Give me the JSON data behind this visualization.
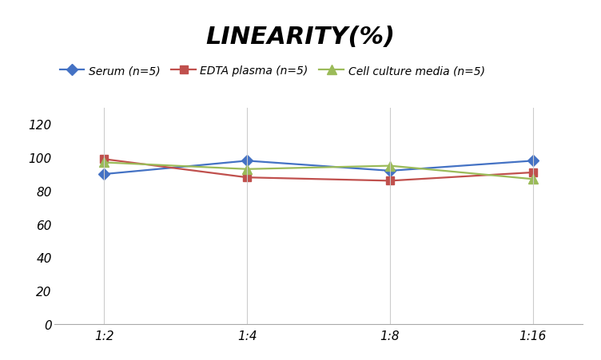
{
  "title": "LINEARITY(%)",
  "x_labels": [
    "1:2",
    "1:4",
    "1:8",
    "1:16"
  ],
  "x_positions": [
    0,
    1,
    2,
    3
  ],
  "series": [
    {
      "label": "Serum (n=5)",
      "values": [
        90,
        98,
        92,
        98
      ],
      "color": "#4472C4",
      "marker": "D",
      "markersize": 7,
      "linewidth": 1.6
    },
    {
      "label": "EDTA plasma (n=5)",
      "values": [
        99,
        88,
        86,
        91
      ],
      "color": "#C0504D",
      "marker": "s",
      "markersize": 7,
      "linewidth": 1.6
    },
    {
      "label": "Cell culture media (n=5)",
      "values": [
        97,
        93,
        95,
        87
      ],
      "color": "#9BBB59",
      "marker": "^",
      "markersize": 8,
      "linewidth": 1.6
    }
  ],
  "ylim": [
    0,
    130
  ],
  "yticks": [
    0,
    20,
    40,
    60,
    80,
    100,
    120
  ],
  "background_color": "#ffffff",
  "grid_color": "#cccccc",
  "title_fontsize": 22,
  "legend_fontsize": 10,
  "tick_fontsize": 11
}
